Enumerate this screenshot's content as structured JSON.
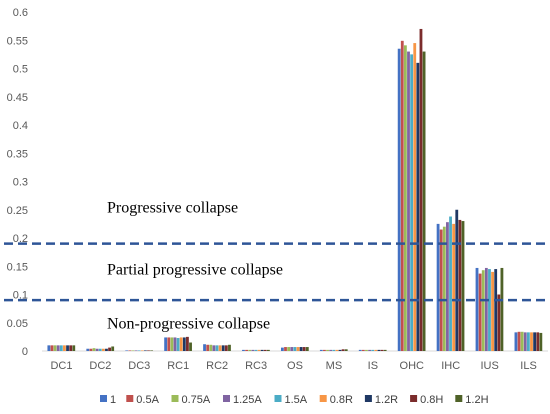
{
  "chart_data": {
    "type": "bar",
    "title": "",
    "xlabel": "",
    "ylabel": "",
    "ylim": [
      0,
      0.6
    ],
    "yticks": [
      "0",
      "0.05",
      "0.1",
      "0.15",
      "0.2",
      "0.25",
      "0.3",
      "0.35",
      "0.4",
      "0.45",
      "0.5",
      "0.55",
      "0.6"
    ],
    "grid": false,
    "legend_position": "bottom",
    "categories": [
      "DC1",
      "DC2",
      "DC3",
      "RC1",
      "RC2",
      "RC3",
      "OS",
      "MS",
      "IS",
      "OHC",
      "IHC",
      "IUS",
      "ILS"
    ],
    "series": [
      {
        "name": "1",
        "color": "#4472C4",
        "values": [
          0.01,
          0.004,
          0.001,
          0.024,
          0.012,
          0.002,
          0.006,
          0.002,
          0.002,
          0.535,
          0.225,
          0.147,
          0.033
        ]
      },
      {
        "name": "0.5A",
        "color": "#C0504D",
        "values": [
          0.01,
          0.004,
          0.001,
          0.024,
          0.011,
          0.002,
          0.007,
          0.002,
          0.002,
          0.549,
          0.215,
          0.137,
          0.034
        ]
      },
      {
        "name": "0.75A",
        "color": "#9BBB59",
        "values": [
          0.01,
          0.005,
          0.001,
          0.024,
          0.011,
          0.002,
          0.007,
          0.002,
          0.002,
          0.541,
          0.22,
          0.143,
          0.034
        ]
      },
      {
        "name": "1.25A",
        "color": "#8064A2",
        "values": [
          0.01,
          0.004,
          0.001,
          0.024,
          0.01,
          0.002,
          0.007,
          0.002,
          0.002,
          0.53,
          0.228,
          0.147,
          0.033
        ]
      },
      {
        "name": "1.5A",
        "color": "#4BACC6",
        "values": [
          0.01,
          0.004,
          0.001,
          0.023,
          0.01,
          0.002,
          0.007,
          0.002,
          0.002,
          0.525,
          0.238,
          0.145,
          0.033
        ]
      },
      {
        "name": "0.8R",
        "color": "#F79646",
        "values": [
          0.01,
          0.004,
          0.001,
          0.024,
          0.01,
          0.002,
          0.007,
          0.002,
          0.002,
          0.545,
          0.225,
          0.14,
          0.033
        ]
      },
      {
        "name": "1.2R",
        "color": "#1F3864",
        "values": [
          0.01,
          0.004,
          0.001,
          0.024,
          0.01,
          0.002,
          0.007,
          0.002,
          0.002,
          0.51,
          0.25,
          0.145,
          0.033
        ]
      },
      {
        "name": "0.8H",
        "color": "#7B2C2C",
        "values": [
          0.01,
          0.006,
          0.001,
          0.025,
          0.01,
          0.002,
          0.007,
          0.003,
          0.002,
          0.57,
          0.232,
          0.1,
          0.033
        ]
      },
      {
        "name": "1.2H",
        "color": "#4F6228",
        "values": [
          0.01,
          0.008,
          0.001,
          0.015,
          0.011,
          0.002,
          0.007,
          0.003,
          0.002,
          0.53,
          0.23,
          0.147,
          0.032
        ]
      }
    ],
    "thresholds": [
      {
        "value": 0.19,
        "style": "dashed",
        "color": "#2E5597"
      },
      {
        "value": 0.09,
        "style": "dashed",
        "color": "#2E5597"
      }
    ],
    "annotations": [
      {
        "text": "Progressive collapse",
        "y": 0.245
      },
      {
        "text": "Partial progressive collapse",
        "y": 0.135
      },
      {
        "text": "Non-progressive collapse",
        "y": 0.04
      }
    ]
  }
}
